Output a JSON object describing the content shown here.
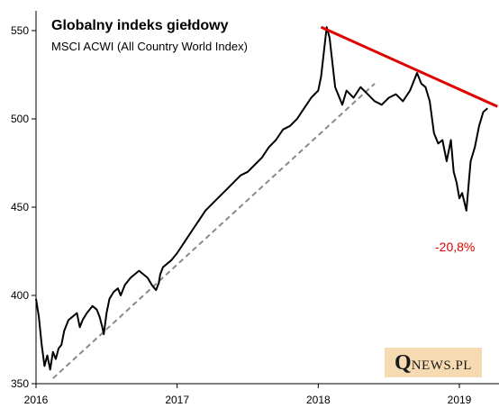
{
  "title": "Globalny indeks giełdowy",
  "subtitle": "MSCI ACWI (All Country World Index)",
  "annotation": "-20,8%",
  "logo": {
    "initial": "Q",
    "rest": "NEWS.PL"
  },
  "colors": {
    "series": "#000000",
    "trendline": "#e00000",
    "baseline": "#8a8a8a",
    "annotation": "#e00000",
    "logo_bg": "#f6dbb2"
  },
  "chart_data": {
    "type": "line",
    "title": "Globalny indeks giełdowy",
    "subtitle": "MSCI ACWI (All Country World Index)",
    "xlabel": "",
    "ylabel": "",
    "xlim": [
      2016.0,
      2019.27
    ],
    "ylim": [
      350,
      560
    ],
    "x_ticks": [
      2016,
      2017,
      2018,
      2019
    ],
    "x_tick_labels": [
      "2016",
      "2017",
      "2018",
      "2019"
    ],
    "y_ticks": [
      350,
      400,
      450,
      500,
      550
    ],
    "y_tick_labels": [
      "350",
      "400",
      "450",
      "500",
      "550"
    ],
    "grid": false,
    "legend": "none",
    "series": [
      {
        "x": [
          2016.0,
          2016.02,
          2016.04,
          2016.06,
          2016.08,
          2016.1,
          2016.12,
          2016.14,
          2016.16,
          2016.18,
          2016.2,
          2016.23,
          2016.26,
          2016.29,
          2016.31,
          2016.33,
          2016.36,
          2016.4,
          2016.43,
          2016.45,
          2016.47,
          2016.48,
          2016.5,
          2016.52,
          2016.55,
          2016.58,
          2016.6,
          2016.63,
          2016.67,
          2016.7,
          2016.73,
          2016.76,
          2016.79,
          2016.82,
          2016.84,
          2016.85,
          2016.87,
          2016.88,
          2016.9,
          2016.93,
          2016.96,
          2017.0,
          2017.05,
          2017.1,
          2017.15,
          2017.2,
          2017.25,
          2017.3,
          2017.35,
          2017.4,
          2017.45,
          2017.5,
          2017.55,
          2017.6,
          2017.65,
          2017.7,
          2017.75,
          2017.8,
          2017.85,
          2017.9,
          2017.95,
          2018.0,
          2018.02,
          2018.04,
          2018.06,
          2018.08,
          2018.1,
          2018.12,
          2018.14,
          2018.17,
          2018.2,
          2018.25,
          2018.3,
          2018.35,
          2018.4,
          2018.45,
          2018.5,
          2018.55,
          2018.6,
          2018.65,
          2018.7,
          2018.73,
          2018.76,
          2018.79,
          2018.82,
          2018.85,
          2018.88,
          2018.91,
          2018.94,
          2018.96,
          2018.98,
          2019.0,
          2019.02,
          2019.05,
          2019.08,
          2019.11,
          2019.14,
          2019.17,
          2019.2
        ],
        "values": [
          398,
          388,
          372,
          360,
          366,
          358,
          368,
          364,
          370,
          372,
          380,
          386,
          388,
          390,
          382,
          386,
          390,
          394,
          392,
          388,
          382,
          378,
          390,
          398,
          402,
          404,
          400,
          406,
          410,
          412,
          414,
          412,
          410,
          406,
          404,
          403,
          407,
          412,
          416,
          418,
          420,
          424,
          430,
          436,
          442,
          448,
          452,
          456,
          460,
          464,
          468,
          470,
          474,
          478,
          484,
          488,
          494,
          496,
          500,
          506,
          512,
          516,
          524,
          538,
          552,
          546,
          532,
          518,
          514,
          508,
          516,
          512,
          518,
          514,
          510,
          508,
          512,
          514,
          510,
          516,
          526,
          520,
          518,
          510,
          492,
          486,
          488,
          476,
          488,
          470,
          464,
          455,
          458,
          448,
          476,
          484,
          496,
          504,
          506
        ]
      }
    ],
    "trendline": {
      "x": [
        2018.02,
        2019.27
      ],
      "values": [
        552,
        507
      ]
    },
    "baseline": {
      "x": [
        2016.12,
        2018.4
      ],
      "values": [
        353,
        520
      ]
    },
    "annotations": [
      {
        "text": "-20,8%",
        "x": 2018.95,
        "y": 427
      }
    ]
  }
}
